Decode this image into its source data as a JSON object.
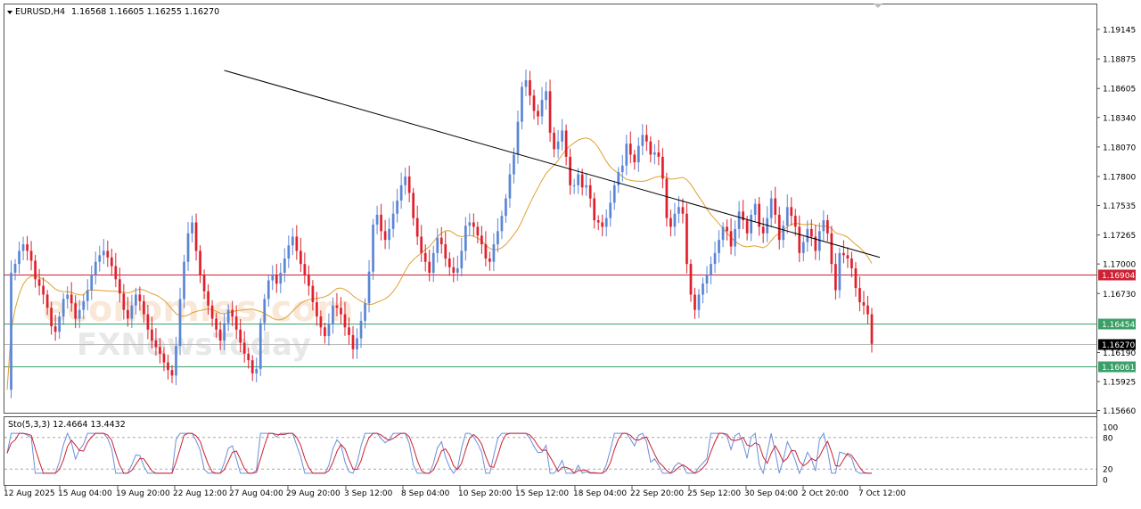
{
  "chart_data": [
    {
      "type": "candlestick",
      "header": {
        "symbol_timeframe": "EURUSD,H4",
        "quote": "1.16568 1.16605 1.16255 1.16270"
      },
      "ylim": [
        1.1566,
        1.1935
      ],
      "y_ticks": [
        "1.19145",
        "1.18875",
        "1.18605",
        "1.18340",
        "1.18070",
        "1.17800",
        "1.17535",
        "1.17265",
        "1.17000",
        "1.16730",
        "1.16190",
        "1.15925",
        "1.15660"
      ],
      "x_ticks": [
        "12 Aug 2025",
        "15 Aug 04:00",
        "19 Aug 20:00",
        "22 Aug 12:00",
        "27 Aug 04:00",
        "29 Aug 20:00",
        "3 Sep 12:00",
        "8 Sep 04:00",
        "10 Sep 20:00",
        "15 Sep 12:00",
        "18 Sep 04:00",
        "22 Sep 20:00",
        "25 Sep 12:00",
        "30 Sep 04:00",
        "2 Oct 20:00",
        "7 Oct 12:00"
      ],
      "levels": [
        {
          "label": "1.16904",
          "value": 1.16904,
          "color": "#cc2233"
        },
        {
          "label": "1.16454",
          "value": 1.16454,
          "color": "#3aa068"
        },
        {
          "label": "1.16270",
          "value": 1.1627,
          "color": "#000000"
        },
        {
          "label": "1.16061",
          "value": 1.16061,
          "color": "#3aa068"
        }
      ],
      "trendline": {
        "start": [
          54,
          1.1877
        ],
        "end": [
          217,
          1.1706
        ]
      },
      "bull_color": "#5b86d6",
      "bear_color": "#e0202c",
      "ma_color": "#e0a030",
      "closes": [
        1.1585,
        1.1692,
        1.17,
        1.1712,
        1.1718,
        1.1712,
        1.1703,
        1.1686,
        1.168,
        1.1672,
        1.166,
        1.1643,
        1.1638,
        1.1652,
        1.1668,
        1.1672,
        1.1664,
        1.165,
        1.1658,
        1.1666,
        1.1676,
        1.169,
        1.1702,
        1.1708,
        1.1712,
        1.1706,
        1.1698,
        1.1686,
        1.1673,
        1.1658,
        1.165,
        1.1662,
        1.1672,
        1.1666,
        1.1654,
        1.164,
        1.163,
        1.1624,
        1.1618,
        1.161,
        1.1603,
        1.1598,
        1.1625,
        1.1668,
        1.1702,
        1.1728,
        1.1738,
        1.1712,
        1.169,
        1.1675,
        1.1662,
        1.165,
        1.164,
        1.163,
        1.1646,
        1.1658,
        1.1652,
        1.164,
        1.1628,
        1.1618,
        1.1612,
        1.16,
        1.1604,
        1.1646,
        1.1668,
        1.1685,
        1.169,
        1.1682,
        1.1692,
        1.1705,
        1.1717,
        1.1725,
        1.1712,
        1.17,
        1.169,
        1.168,
        1.1665,
        1.1652,
        1.1642,
        1.1634,
        1.1645,
        1.1662,
        1.166,
        1.1654,
        1.1642,
        1.1635,
        1.1622,
        1.1632,
        1.1648,
        1.1664,
        1.1693,
        1.1736,
        1.1745,
        1.173,
        1.1722,
        1.1732,
        1.1746,
        1.1758,
        1.1772,
        1.178,
        1.1765,
        1.1742,
        1.1725,
        1.171,
        1.1702,
        1.1692,
        1.171,
        1.1724,
        1.1718,
        1.1705,
        1.1697,
        1.1692,
        1.1696,
        1.1712,
        1.1735,
        1.1738,
        1.1734,
        1.1726,
        1.1718,
        1.1705,
        1.1702,
        1.1718,
        1.173,
        1.1744,
        1.176,
        1.1782,
        1.18,
        1.183,
        1.1862,
        1.1868,
        1.1854,
        1.184,
        1.1835,
        1.185,
        1.1858,
        1.182,
        1.1805,
        1.1812,
        1.1822,
        1.1798,
        1.1772,
        1.1772,
        1.1782,
        1.177,
        1.1772,
        1.176,
        1.174,
        1.1738,
        1.1734,
        1.1742,
        1.1756,
        1.1772,
        1.1784,
        1.179,
        1.181,
        1.18,
        1.1793,
        1.1808,
        1.1818,
        1.1812,
        1.18,
        1.1802,
        1.1798,
        1.1778,
        1.1742,
        1.1734,
        1.1746,
        1.1752,
        1.1746,
        1.17,
        1.1672,
        1.1658,
        1.1672,
        1.1682,
        1.169,
        1.17,
        1.171,
        1.1722,
        1.1734,
        1.173,
        1.1716,
        1.1732,
        1.1748,
        1.174,
        1.1728,
        1.1745,
        1.1755,
        1.1734,
        1.1728,
        1.1742,
        1.176,
        1.1745,
        1.1722,
        1.1735,
        1.1752,
        1.1744,
        1.1734,
        1.171,
        1.172,
        1.1732,
        1.1725,
        1.1712,
        1.173,
        1.174,
        1.1728,
        1.17,
        1.1676,
        1.171,
        1.1708,
        1.1705,
        1.1696,
        1.1678,
        1.1665,
        1.1662,
        1.1654,
        1.1627
      ],
      "stochastic": {
        "label": "Sto(5,3,3) 12.4664 13.4432",
        "levels": [
          80,
          20
        ],
        "y_ticks": [
          "100",
          "80",
          "20",
          "0"
        ],
        "k_color": "#6a8fd8",
        "d_color": "#cc2233"
      }
    }
  ],
  "watermark": {
    "line1": "economies.com",
    "line2": "FXNewsToday"
  }
}
